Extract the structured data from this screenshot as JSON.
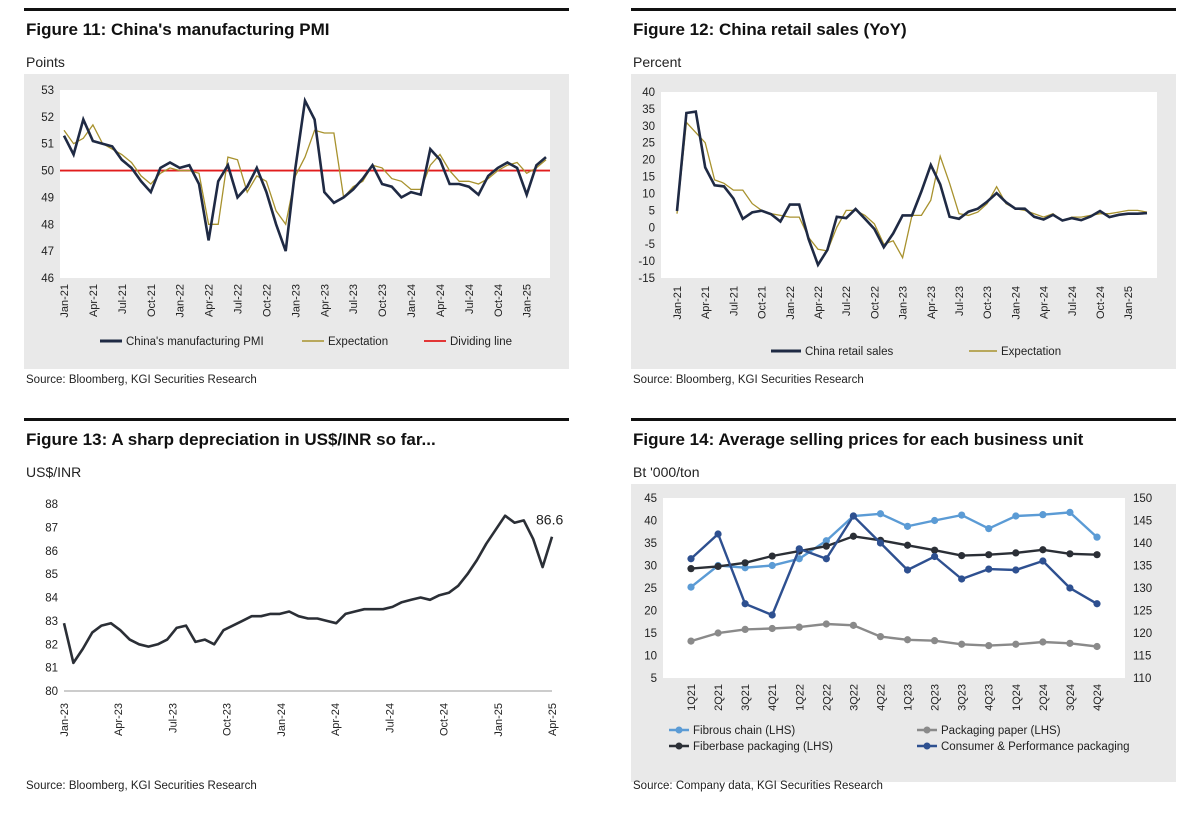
{
  "panels": [
    {
      "title": "Figure 11: China's manufacturing PMI",
      "unit": "Points",
      "source": "Source: Bloomberg, KGI Securities Research"
    },
    {
      "title": "Figure 12: China retail sales (YoY)",
      "unit": "Percent",
      "source": "Source: Bloomberg, KGI Securities Research"
    },
    {
      "title": "Figure 13: A sharp depreciation in US$/INR so far...",
      "unit": "US$/INR",
      "source": "Source: Bloomberg, KGI Securities Research"
    },
    {
      "title": "Figure 14: Average selling prices for each business unit",
      "unit": "Bt '000/ton",
      "source": "Source: Company data, KGI Securities Research"
    }
  ],
  "colors": {
    "navy": "#1f2a44",
    "gold": "#a8922e",
    "red": "#e11d1d",
    "lightblue": "#5b9bd5",
    "gray": "#8a8a8a",
    "dark": "#2b2f36",
    "blue": "#2e5090"
  },
  "chart_data": [
    {
      "type": "line",
      "x_ticks": [
        "Jan-21",
        "Apr-21",
        "Jul-21",
        "Oct-21",
        "Jan-22",
        "Apr-22",
        "Jul-22",
        "Oct-22",
        "Jan-23",
        "Apr-23",
        "Jul-23",
        "Oct-23",
        "Jan-24",
        "Apr-24",
        "Jul-24",
        "Oct-24",
        "Jan-25"
      ],
      "ylim": [
        46,
        53
      ],
      "y_ticks": [
        46,
        47,
        48,
        49,
        50,
        51,
        52,
        53
      ],
      "series": [
        {
          "name": "China's manufacturing PMI",
          "color": "#1f2a44",
          "values": [
            51.3,
            50.6,
            51.9,
            51.1,
            51.0,
            50.9,
            50.4,
            50.1,
            49.6,
            49.2,
            50.1,
            50.3,
            50.1,
            50.2,
            49.5,
            47.4,
            49.6,
            50.2,
            49.0,
            49.4,
            50.1,
            49.2,
            48.0,
            47.0,
            50.1,
            52.6,
            51.9,
            49.2,
            48.8,
            49.0,
            49.3,
            49.7,
            50.2,
            49.5,
            49.4,
            49.0,
            49.2,
            49.1,
            50.8,
            50.4,
            49.5,
            49.5,
            49.4,
            49.1,
            49.8,
            50.1,
            50.3,
            50.1,
            49.1,
            50.2,
            50.5
          ]
        },
        {
          "name": "Expectation",
          "color": "#a8922e",
          "values": [
            51.5,
            51.0,
            51.2,
            51.7,
            51.0,
            50.8,
            50.6,
            50.3,
            49.8,
            49.5,
            49.9,
            50.1,
            50.0,
            50.0,
            49.9,
            48.0,
            48.0,
            50.5,
            50.4,
            49.2,
            49.8,
            49.6,
            48.5,
            48.0,
            49.8,
            50.5,
            51.5,
            51.4,
            51.4,
            49.0,
            49.4,
            49.6,
            50.2,
            50.1,
            49.7,
            49.6,
            49.3,
            49.3,
            50.2,
            50.6,
            50.0,
            49.6,
            49.6,
            49.5,
            49.7,
            50.0,
            50.2,
            50.3,
            49.9,
            50.1,
            50.4
          ]
        }
      ],
      "reference_line": {
        "name": "Dividing line",
        "value": 50,
        "color": "#e11d1d"
      },
      "legend": "bottom"
    },
    {
      "type": "line",
      "x_ticks": [
        "Jan-21",
        "Apr-21",
        "Jul-21",
        "Oct-21",
        "Jan-22",
        "Apr-22",
        "Jul-22",
        "Oct-22",
        "Jan-23",
        "Apr-23",
        "Jul-23",
        "Oct-23",
        "Jan-24",
        "Apr-24",
        "Jul-24",
        "Oct-24",
        "Jan-25"
      ],
      "ylim": [
        -15,
        40
      ],
      "y_ticks": [
        -15,
        -10,
        -5,
        0,
        5,
        10,
        15,
        20,
        25,
        30,
        35,
        40
      ],
      "series": [
        {
          "name": "China retail sales",
          "color": "#1f2a44",
          "values": [
            4.8,
            33.8,
            34.2,
            17.7,
            12.4,
            12.1,
            8.5,
            2.5,
            4.4,
            4.9,
            3.9,
            1.7,
            6.7,
            6.7,
            -3.5,
            -11.1,
            -6.7,
            3.1,
            2.7,
            5.4,
            2.5,
            -0.5,
            -5.9,
            -1.8,
            3.5,
            3.5,
            10.6,
            18.4,
            12.7,
            3.1,
            2.5,
            4.6,
            5.5,
            7.6,
            10.1,
            7.4,
            5.5,
            5.5,
            3.1,
            2.3,
            3.7,
            2.0,
            2.7,
            2.1,
            3.2,
            4.8,
            3.0,
            3.7,
            4.0,
            4.0,
            4.2
          ]
        },
        {
          "name": "Expectation",
          "color": "#a8922e",
          "values": [
            4.0,
            31.0,
            28.0,
            25.0,
            14.0,
            13.0,
            11.0,
            11.0,
            7.0,
            5.0,
            4.0,
            3.5,
            3.0,
            3.0,
            -3.0,
            -6.5,
            -7.0,
            0.0,
            5.0,
            5.0,
            3.5,
            1.0,
            -5.0,
            -4.0,
            -9.0,
            3.5,
            3.5,
            8.0,
            21.0,
            13.0,
            4.0,
            3.5,
            4.5,
            7.0,
            12.0,
            7.0,
            5.5,
            5.0,
            4.0,
            3.0,
            4.0,
            2.0,
            3.0,
            3.0,
            3.5,
            4.0,
            4.0,
            4.5,
            5.0,
            5.0,
            4.5
          ]
        }
      ],
      "legend": "bottom"
    },
    {
      "type": "line",
      "x_ticks": [
        "Jan-23",
        "Apr-23",
        "Jul-23",
        "Oct-23",
        "Jan-24",
        "Apr-24",
        "Jul-24",
        "Oct-24",
        "Jan-25",
        "Apr-25"
      ],
      "ylim": [
        80,
        88
      ],
      "y_ticks": [
        80,
        81,
        82,
        83,
        84,
        85,
        86,
        87,
        88
      ],
      "series": [
        {
          "name": "US$/INR",
          "color": "#2b2f36",
          "values": [
            82.9,
            81.2,
            81.8,
            82.5,
            82.8,
            82.9,
            82.6,
            82.2,
            82.0,
            81.9,
            82.0,
            82.2,
            82.7,
            82.8,
            82.1,
            82.2,
            82.0,
            82.6,
            82.8,
            83.0,
            83.2,
            83.2,
            83.3,
            83.3,
            83.4,
            83.2,
            83.1,
            83.1,
            83.0,
            82.9,
            83.3,
            83.4,
            83.5,
            83.5,
            83.5,
            83.6,
            83.8,
            83.9,
            84.0,
            83.9,
            84.1,
            84.2,
            84.5,
            85.0,
            85.6,
            86.3,
            86.9,
            87.5,
            87.2,
            87.3,
            86.5,
            85.3,
            86.6
          ]
        }
      ],
      "last_value_label": "86.6",
      "legend": "none"
    },
    {
      "type": "line",
      "categories": [
        "1Q21",
        "2Q21",
        "3Q21",
        "4Q21",
        "1Q22",
        "2Q22",
        "3Q22",
        "4Q22",
        "1Q23",
        "2Q23",
        "3Q23",
        "4Q23",
        "1Q24",
        "2Q24",
        "3Q24",
        "4Q24"
      ],
      "ylim_left": [
        5,
        45
      ],
      "y_ticks_left": [
        5,
        10,
        15,
        20,
        25,
        30,
        35,
        40,
        45
      ],
      "ylim_right": [
        110,
        150
      ],
      "y_ticks_right": [
        110,
        115,
        120,
        125,
        130,
        135,
        140,
        145,
        150
      ],
      "series": [
        {
          "name": "Fibrous chain (LHS)",
          "axis": "left",
          "color": "#5b9bd5",
          "values": [
            25.2,
            30.0,
            29.5,
            30.0,
            31.5,
            35.5,
            41.0,
            41.5,
            38.7,
            40.0,
            41.2,
            38.2,
            41.0,
            41.3,
            41.8,
            36.3
          ]
        },
        {
          "name": "Packaging paper (LHS)",
          "axis": "left",
          "color": "#8a8a8a",
          "values": [
            13.2,
            15.0,
            15.8,
            16.0,
            16.3,
            17.0,
            16.7,
            14.2,
            13.5,
            13.3,
            12.5,
            12.2,
            12.5,
            13.0,
            12.7,
            12.0
          ]
        },
        {
          "name": "Fiberbase packaging (LHS)",
          "axis": "left",
          "color": "#2b2f36",
          "values": [
            29.3,
            29.8,
            30.6,
            32.1,
            33.2,
            34.3,
            36.5,
            35.6,
            34.5,
            33.4,
            32.2,
            32.4,
            32.8,
            33.5,
            32.6,
            32.4
          ]
        },
        {
          "name": "Consumer & Performance packaging",
          "axis": "right",
          "color": "#2e5090",
          "values": [
            136.5,
            142.0,
            126.5,
            124.0,
            138.7,
            136.5,
            146.0,
            140.0,
            134.0,
            137.0,
            132.0,
            134.2,
            134.0,
            136.0,
            130.0,
            126.5
          ]
        }
      ],
      "legend": "bottom"
    }
  ]
}
